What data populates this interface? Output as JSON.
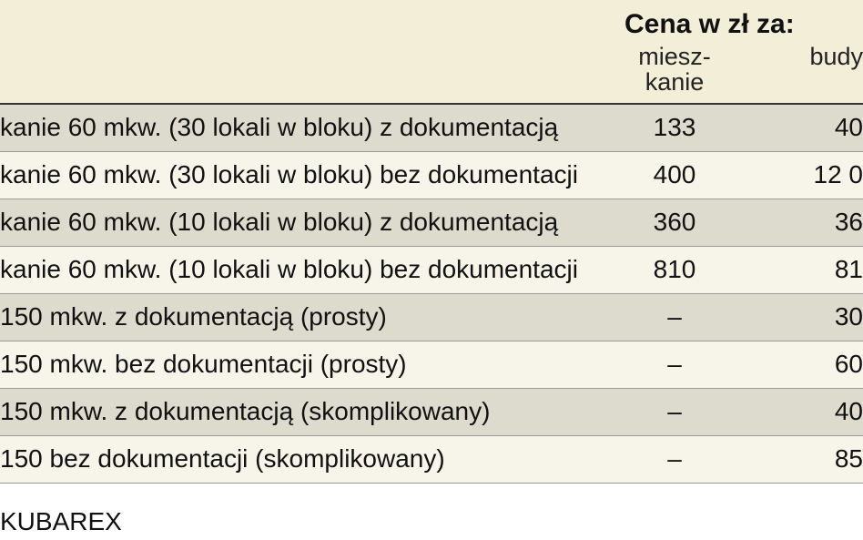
{
  "header": {
    "title": "Cena w zł za:",
    "sub_col1_line1": "miesz-",
    "sub_col1_line2": "kanie",
    "sub_col2": "budy"
  },
  "rows": [
    {
      "desc": "kanie 60 mkw. (30 lokali w bloku) z dokumentacją",
      "mid": "133",
      "right": "40"
    },
    {
      "desc": "kanie  60 mkw. (30 lokali w bloku) bez dokumentacji",
      "mid": "400",
      "right": "12 0"
    },
    {
      "desc": "kanie 60 mkw. (10 lokali w bloku) z dokumentacją",
      "mid": "360",
      "right": "36"
    },
    {
      "desc": "kanie 60 mkw. (10 lokali w bloku) bez dokumentacji",
      "mid": "810",
      "right": "81"
    },
    {
      "desc": "150 mkw. z dokumentacją (prosty)",
      "mid": "–",
      "right": "30"
    },
    {
      "desc": "150 mkw. bez dokumentacji (prosty)",
      "mid": "–",
      "right": "60"
    },
    {
      "desc": "150 mkw. z dokumentacją (skomplikowany)",
      "mid": "–",
      "right": "40"
    },
    {
      "desc": "150  bez dokumentacji (skomplikowany)",
      "mid": "–",
      "right": "85"
    }
  ],
  "footer": "KUBAREX",
  "style": {
    "header_bg": "#f2eed7",
    "row_alt_bg": "#dddbcd",
    "row_plain_bg": "#f7f5ea",
    "border_color": "#999999",
    "header_border": "#333333",
    "text_color": "#111111",
    "title_fontsize": 30,
    "sub_fontsize": 27,
    "row_fontsize": 28,
    "desc_col_width": 676,
    "mid_col_width": 130
  }
}
